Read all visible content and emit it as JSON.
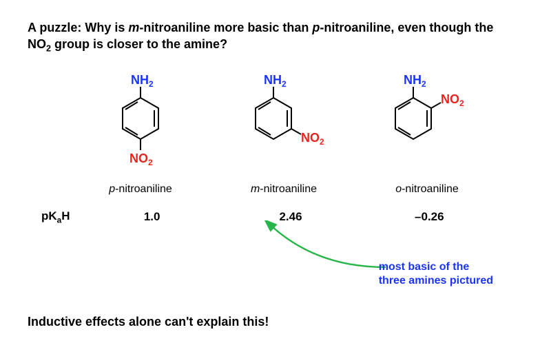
{
  "title_html": "A puzzle: Why is <span class='ital'>m</span>-nitroaniline more basic than <span class='ital'>p</span>-nitroaniline, even though the NO<span class='sub'>2</span> group is closer to the amine?",
  "molecules": [
    {
      "name_html": "<span class='ital'>p</span>-nitroaniline",
      "pka": "1.0"
    },
    {
      "name_html": "<span class='ital'>m</span>-nitroaniline",
      "pka": "2.46"
    },
    {
      "name_html": "<span class='ital'>o</span>-nitroaniline",
      "pka": "–0.26"
    }
  ],
  "pka_label_html": "pK<span class='sub'>a</span>H",
  "callout_line1": "most basic of the",
  "callout_line2": "three amines pictured",
  "bottom_text": "Inductive effects alone can't explain this!",
  "colors": {
    "nh2": "#1a33ff",
    "no2": "#e6261e",
    "ring": "#000000",
    "arrow": "#29b648",
    "callout": "#1a33ff"
  },
  "stroke": {
    "ring_width": 2,
    "arrow_width": 2.5
  }
}
